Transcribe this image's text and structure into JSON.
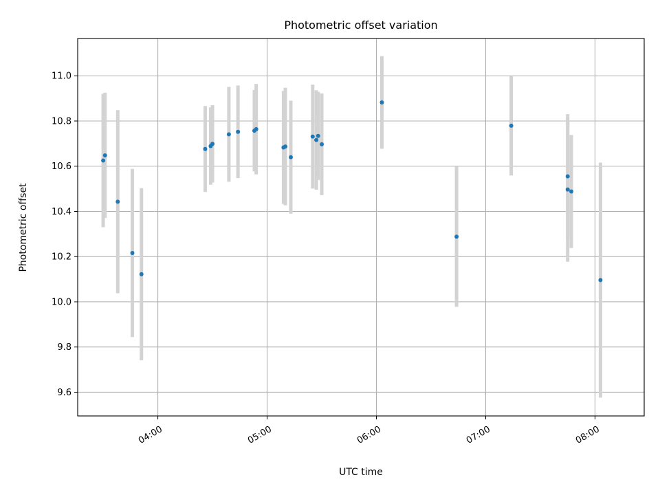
{
  "chart_data": {
    "type": "scatter",
    "title": "Photometric offset variation",
    "xlabel": "UTC time",
    "ylabel": "Photometric offset",
    "grid": true,
    "xlim": [
      "03:16",
      "08:27"
    ],
    "ylim": [
      9.495,
      11.165
    ],
    "x_ticks": [
      "04:00",
      "05:00",
      "06:00",
      "07:00",
      "08:00"
    ],
    "y_ticks": [
      9.6,
      9.8,
      10.0,
      10.2,
      10.4,
      10.6,
      10.8,
      11.0
    ],
    "y_tick_labels": [
      "9.6",
      "9.8",
      "10.0",
      "10.2",
      "10.4",
      "10.6",
      "10.8",
      "11.0"
    ],
    "colors": {
      "point": "#1f77b4",
      "errorbar": "#d3d3d3",
      "grid": "#b0b0b0"
    },
    "points": [
      {
        "time": "03:30",
        "y": 10.625,
        "yerr": 0.295
      },
      {
        "time": "03:31",
        "y": 10.648,
        "yerr": 0.277
      },
      {
        "time": "03:38",
        "y": 10.443,
        "yerr": 0.405
      },
      {
        "time": "03:46",
        "y": 10.216,
        "yerr": 0.372
      },
      {
        "time": "03:51",
        "y": 10.122,
        "yerr": 0.381
      },
      {
        "time": "04:26",
        "y": 10.676,
        "yerr": 0.19
      },
      {
        "time": "04:29",
        "y": 10.689,
        "yerr": 0.171
      },
      {
        "time": "04:30",
        "y": 10.699,
        "yerr": 0.171
      },
      {
        "time": "04:39",
        "y": 10.741,
        "yerr": 0.21
      },
      {
        "time": "04:44",
        "y": 10.752,
        "yerr": 0.205
      },
      {
        "time": "04:53",
        "y": 10.757,
        "yerr": 0.18
      },
      {
        "time": "04:54",
        "y": 10.764,
        "yerr": 0.2
      },
      {
        "time": "05:09",
        "y": 10.683,
        "yerr": 0.25
      },
      {
        "time": "05:10",
        "y": 10.687,
        "yerr": 0.26
      },
      {
        "time": "05:13",
        "y": 10.64,
        "yerr": 0.25
      },
      {
        "time": "05:25",
        "y": 10.731,
        "yerr": 0.23
      },
      {
        "time": "05:27",
        "y": 10.716,
        "yerr": 0.22
      },
      {
        "time": "05:28",
        "y": 10.734,
        "yerr": 0.195
      },
      {
        "time": "05:30",
        "y": 10.697,
        "yerr": 0.225
      },
      {
        "time": "06:03",
        "y": 10.882,
        "yerr": 0.205
      },
      {
        "time": "06:44",
        "y": 10.288,
        "yerr": 0.31
      },
      {
        "time": "07:14",
        "y": 10.779,
        "yerr": 0.22
      },
      {
        "time": "07:45",
        "y": 10.497,
        "yerr": 0.32
      },
      {
        "time": "07:45",
        "y": 10.555,
        "yerr": 0.275
      },
      {
        "time": "07:47",
        "y": 10.488,
        "yerr": 0.25
      },
      {
        "time": "08:03",
        "y": 10.096,
        "yerr": 0.52
      }
    ]
  }
}
